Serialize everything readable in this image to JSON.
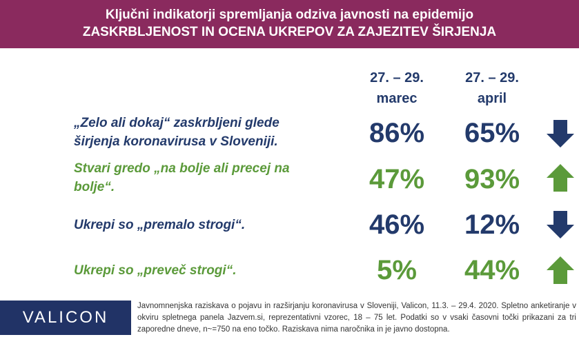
{
  "header": {
    "line1": "Ključni indikatorji spremljanja odziva javnosti na epidemijo",
    "line2": "ZASKRBLJENOST IN OCENA UKREPOV ZA ZAJEZITEV ŠIRJENJA"
  },
  "columns": [
    {
      "line1": "27. – 29.",
      "line2": "marec"
    },
    {
      "line1": "27. – 29.",
      "line2": "april"
    }
  ],
  "rows": [
    {
      "label_line1": "„Zelo ali dokaj“ zaskrbljeni glede",
      "label_line2": "širjenja koronavirusa v Sloveniji.",
      "march": "86%",
      "april": "65%",
      "trend": "down",
      "color": "#233a6b"
    },
    {
      "label_line1": "Stvari gredo „na bolje ali precej na",
      "label_line2": "bolje“.",
      "march": "47%",
      "april": "93%",
      "trend": "up",
      "color": "#5b9a3a"
    },
    {
      "label_line1": "Ukrepi so „premalo strogi“.",
      "label_line2": "",
      "march": "46%",
      "april": "12%",
      "trend": "down",
      "color": "#233a6b"
    },
    {
      "label_line1": "Ukrepi so „preveč strogi“.",
      "label_line2": "",
      "march": "5%",
      "april": "44%",
      "trend": "up",
      "color": "#5b9a3a"
    }
  ],
  "icons": {
    "down": "arrow-down-icon",
    "up": "arrow-up-icon"
  },
  "footer": {
    "logo": "VALICON",
    "text": "Javnomnenjska raziskava o pojavu in razširjanju koronavirusa v Sloveniji, Valicon, 11.3. – 29.4. 2020. Spletno anketiranje v okviru spletnega panela Jazvem.si, reprezentativni vzorec, 18 – 75 let. Podatki so v vsaki časovni točki prikazani za tri zaporedne dneve, n~=750 na eno točko. Raziskava nima naročnika in je javno dostopna."
  },
  "colors": {
    "header_bg": "#8a2a5e",
    "navy": "#233a6b",
    "green": "#5b9a3a",
    "logo_bg": "#213366"
  }
}
